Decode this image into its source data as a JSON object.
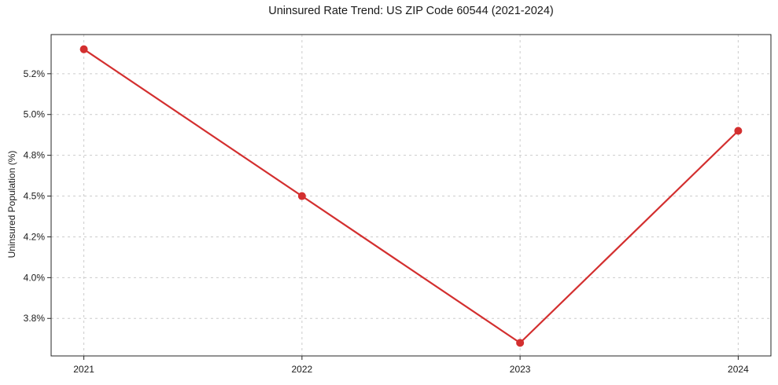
{
  "chart_data": {
    "type": "line",
    "title": "Uninsured Rate Trend: US ZIP Code 60544 (2021-2024)",
    "xlabel": "",
    "ylabel": "Uninsured Population (%)",
    "x": [
      2021,
      2022,
      2023,
      2024
    ],
    "series": [
      {
        "name": "Uninsured rate",
        "values": [
          5.4,
          4.5,
          3.6,
          4.9
        ],
        "color": "#d32f2f"
      }
    ],
    "xticks": [
      {
        "value": 2021,
        "label": "2021"
      },
      {
        "value": 2022,
        "label": "2022"
      },
      {
        "value": 2023,
        "label": "2023"
      },
      {
        "value": 2024,
        "label": "2024"
      }
    ],
    "yticks": [
      {
        "value": 3.75,
        "label": "3.8%"
      },
      {
        "value": 4.0,
        "label": "4.0%"
      },
      {
        "value": 4.25,
        "label": "4.2%"
      },
      {
        "value": 4.5,
        "label": "4.5%"
      },
      {
        "value": 4.75,
        "label": "4.8%"
      },
      {
        "value": 5.0,
        "label": "5.0%"
      },
      {
        "value": 5.25,
        "label": "5.2%"
      }
    ],
    "xlim": [
      2020.85,
      2024.15
    ],
    "ylim": [
      3.52,
      5.49
    ],
    "grid": true,
    "legend_position": "none",
    "style": {
      "line_color": "#d32f2f",
      "marker": "circle",
      "marker_radius": 5,
      "line_width": 2.2,
      "grid_color": "#cccccc",
      "grid_dash": "3 4",
      "spine_color": "#262626",
      "tick_color": "#262626",
      "label_color": "#1a1a1a",
      "background": "#ffffff"
    }
  }
}
